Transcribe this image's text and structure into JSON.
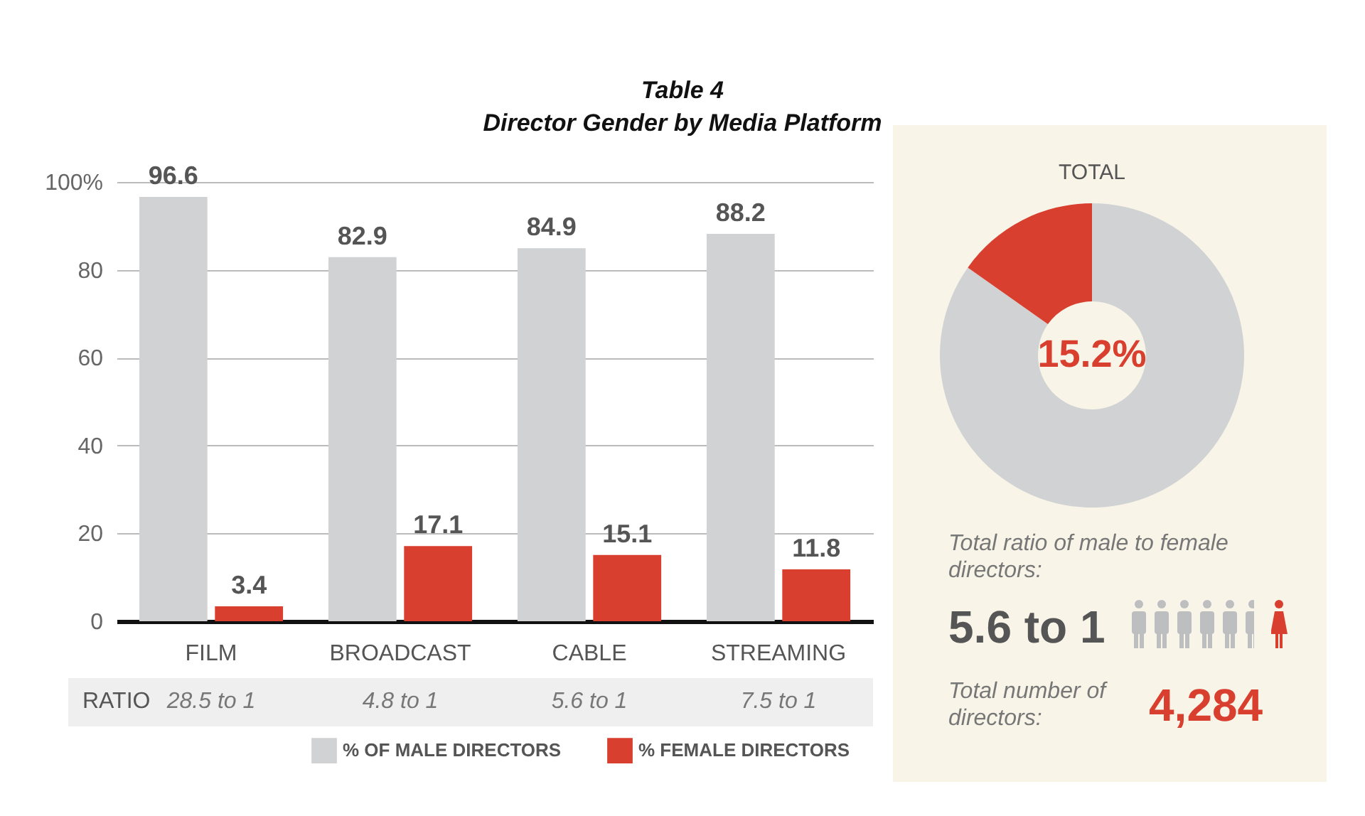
{
  "chart_data": [
    {
      "type": "bar",
      "title": "Table 4",
      "subtitle": "Director Gender by Media Platform",
      "categories": [
        "FILM",
        "BROADCAST",
        "CABLE",
        "STREAMING"
      ],
      "series": [
        {
          "name": "% OF MALE DIRECTORS",
          "color": "#d1d2d4",
          "values": [
            96.6,
            82.9,
            84.9,
            88.2
          ]
        },
        {
          "name": "% FEMALE DIRECTORS",
          "color": "#d93f2e",
          "values": [
            3.4,
            17.1,
            15.1,
            11.8
          ]
        }
      ],
      "ylim": [
        0,
        100
      ],
      "yticks": [
        0,
        20,
        40,
        60,
        80,
        {
          "value": 100,
          "label": "100%"
        }
      ],
      "grid": "y",
      "legend": "bottom right",
      "data_labels": true,
      "annotations": [
        "RATIO",
        "28.5 to 1",
        "4.8 to 1",
        "5.6 to 1",
        "7.5 to 1"
      ]
    },
    {
      "type": "donut",
      "title": "TOTAL",
      "categories": [
        null,
        null
      ],
      "values": [
        84.8,
        15.2
      ],
      "colors": [
        "#d1d2d4",
        "#d93f2e"
      ],
      "value_labels": [
        null,
        "15.2%"
      ],
      "annotations": [
        "Total ratio of male to female directors:",
        "5.6 to 1",
        "Total number of directors:",
        "4,284"
      ]
    }
  ]
}
